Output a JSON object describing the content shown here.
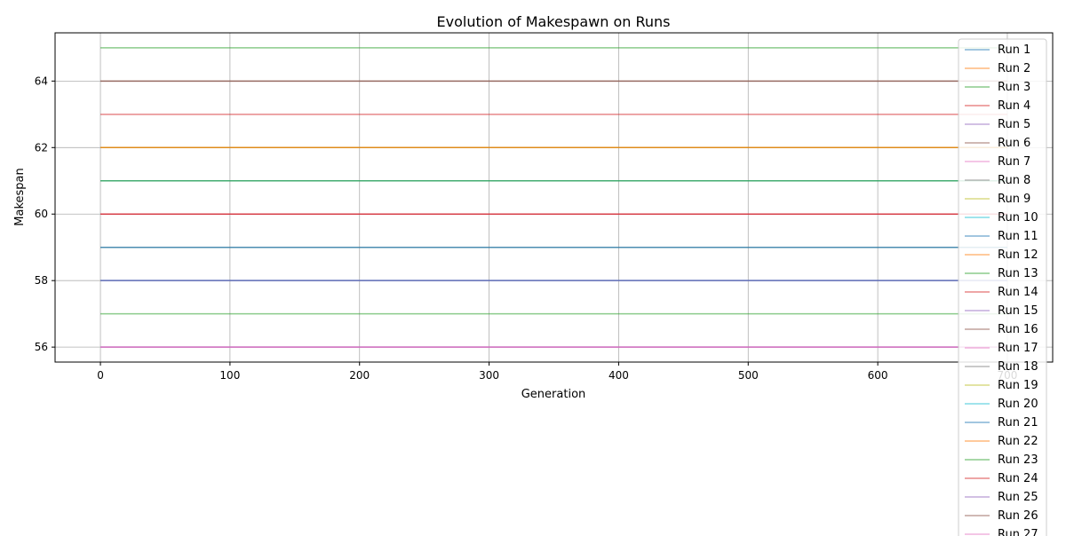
{
  "chart_data": {
    "type": "line",
    "title": "Evolution of Makespawn on Runs",
    "xlabel": "Generation",
    "ylabel": "Makespan",
    "xlim": [
      -35,
      735
    ],
    "ylim": [
      55.55,
      65.45
    ],
    "xticks": [
      0,
      100,
      200,
      300,
      400,
      500,
      600,
      700
    ],
    "yticks": [
      56,
      58,
      60,
      62,
      64
    ],
    "grid": true,
    "legend_position": "top-right",
    "x": [
      0,
      700
    ],
    "series": [
      {
        "name": "Run 1",
        "color": "#1f77b4",
        "values": [
          58,
          58
        ]
      },
      {
        "name": "Run 2",
        "color": "#ff7f0e",
        "values": [
          62,
          62
        ]
      },
      {
        "name": "Run 3",
        "color": "#2ca02c",
        "values": [
          65,
          65
        ]
      },
      {
        "name": "Run 4",
        "color": "#d62728",
        "values": [
          63,
          63
        ]
      },
      {
        "name": "Run 5",
        "color": "#9467bd",
        "values": [
          56,
          56
        ]
      },
      {
        "name": "Run 6",
        "color": "#8c564b",
        "values": [
          64,
          64
        ]
      },
      {
        "name": "Run 7",
        "color": "#e377c2",
        "values": [
          60,
          60
        ]
      },
      {
        "name": "Run 8",
        "color": "#7f7f7f",
        "values": [
          61,
          61
        ]
      },
      {
        "name": "Run 9",
        "color": "#bcbd22",
        "values": [
          62,
          62
        ]
      },
      {
        "name": "Run 10",
        "color": "#17becf",
        "values": [
          59,
          59
        ]
      },
      {
        "name": "Run 11",
        "color": "#1f77b4",
        "values": [
          58,
          58
        ]
      },
      {
        "name": "Run 12",
        "color": "#ff7f0e",
        "values": [
          62,
          62
        ]
      },
      {
        "name": "Run 13",
        "color": "#2ca02c",
        "values": [
          57,
          57
        ]
      },
      {
        "name": "Run 14",
        "color": "#d62728",
        "values": [
          60,
          60
        ]
      },
      {
        "name": "Run 15",
        "color": "#9467bd",
        "values": [
          56,
          56
        ]
      },
      {
        "name": "Run 16",
        "color": "#8c564b",
        "values": [
          62,
          62
        ]
      },
      {
        "name": "Run 17",
        "color": "#e377c2",
        "values": [
          56,
          56
        ]
      },
      {
        "name": "Run 18",
        "color": "#7f7f7f",
        "values": [
          59,
          59
        ]
      },
      {
        "name": "Run 19",
        "color": "#bcbd22",
        "values": [
          62,
          62
        ]
      },
      {
        "name": "Run 20",
        "color": "#17becf",
        "values": [
          61,
          61
        ]
      },
      {
        "name": "Run 21",
        "color": "#1f77b4",
        "values": [
          59,
          59
        ]
      },
      {
        "name": "Run 22",
        "color": "#ff7f0e",
        "values": [
          62,
          62
        ]
      },
      {
        "name": "Run 23",
        "color": "#2ca02c",
        "values": [
          61,
          61
        ]
      },
      {
        "name": "Run 24",
        "color": "#d62728",
        "values": [
          60,
          60
        ]
      },
      {
        "name": "Run 25",
        "color": "#9467bd",
        "values": [
          58,
          58
        ]
      },
      {
        "name": "Run 26",
        "color": "#8c564b",
        "values": [
          64,
          64
        ]
      },
      {
        "name": "Run 27",
        "color": "#e377c2",
        "values": [
          56,
          56
        ]
      }
    ]
  }
}
